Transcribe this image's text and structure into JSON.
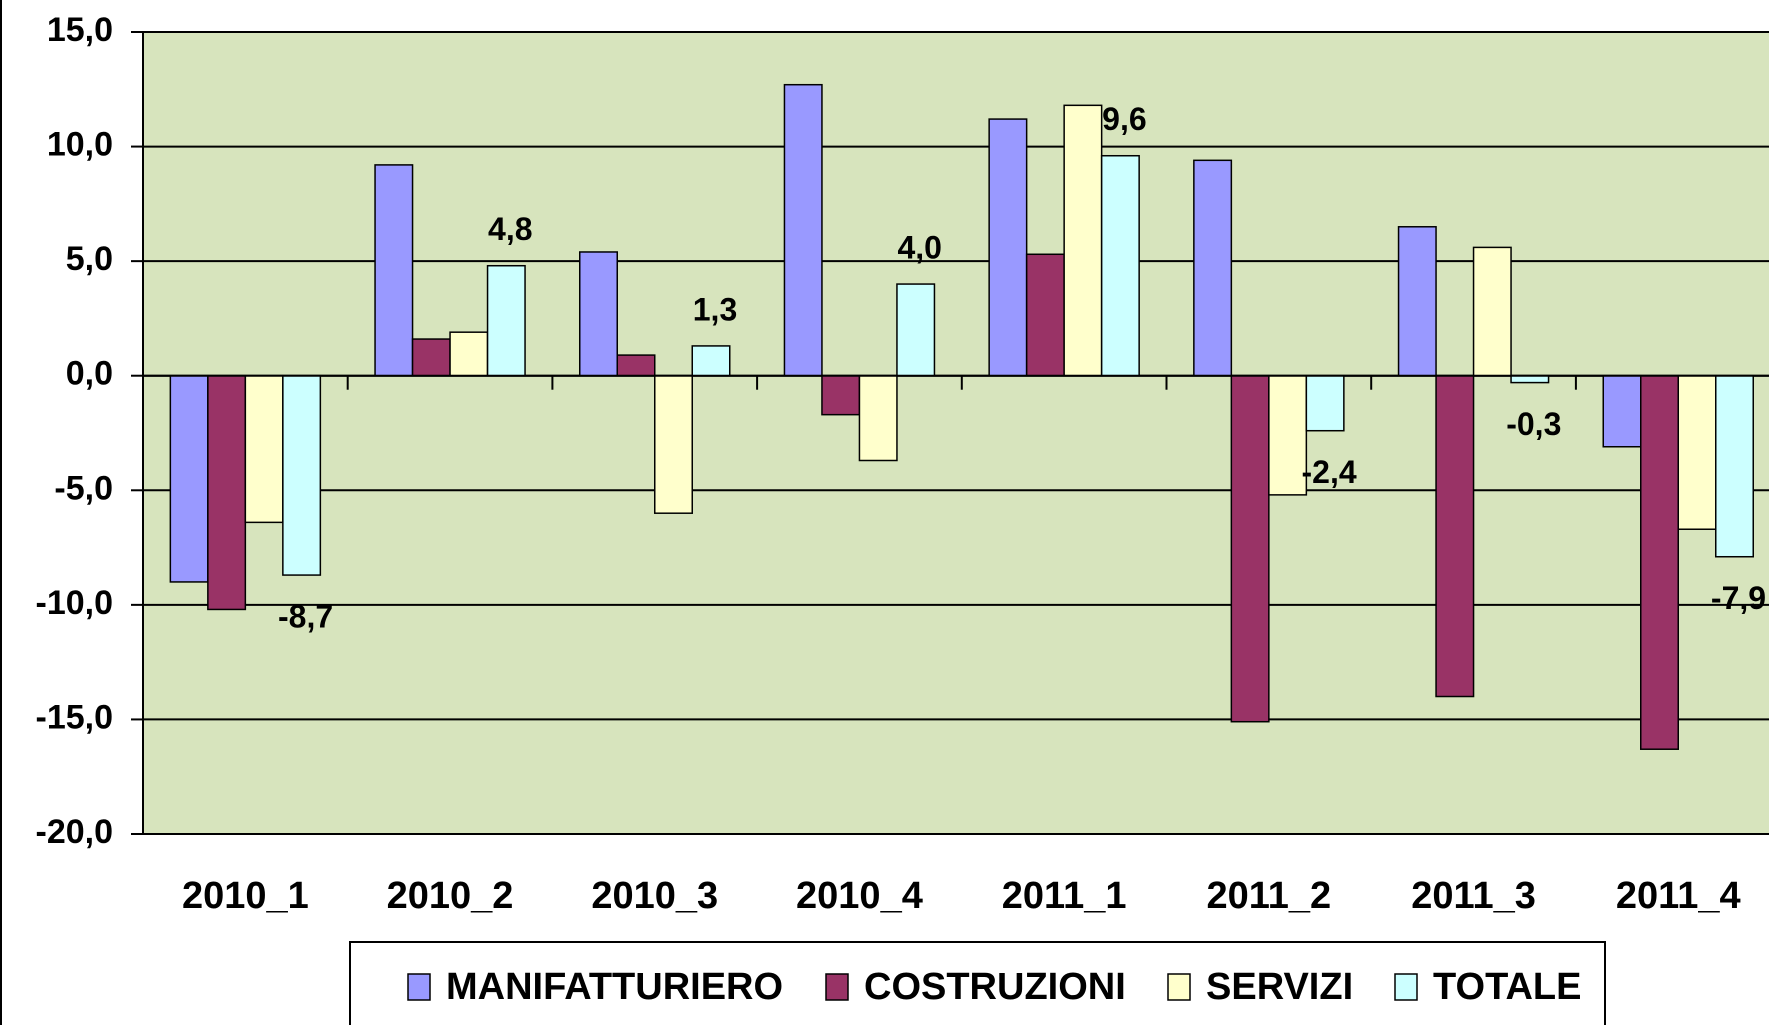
{
  "chart_data": {
    "type": "bar",
    "categories": [
      "2010_1",
      "2010_2",
      "2010_3",
      "2010_4",
      "2011_1",
      "2011_2",
      "2011_3",
      "2011_4"
    ],
    "series": [
      {
        "name": "MANIFATTURIERO",
        "color": "#9999ff",
        "values": [
          -9.0,
          9.2,
          5.4,
          12.7,
          11.2,
          9.4,
          6.5,
          -3.1
        ]
      },
      {
        "name": "COSTRUZIONI",
        "color": "#993366",
        "values": [
          -10.2,
          1.6,
          0.9,
          -1.7,
          5.3,
          -15.1,
          -14.0,
          -16.3
        ]
      },
      {
        "name": "SERVIZI",
        "color": "#ffffcc",
        "values": [
          -6.4,
          1.9,
          -6.0,
          -3.7,
          11.8,
          -5.2,
          5.6,
          -6.7
        ]
      },
      {
        "name": "TOTALE",
        "color": "#ccffff",
        "values": [
          -8.7,
          4.8,
          1.3,
          4.0,
          9.6,
          -2.4,
          -0.3,
          -7.9
        ],
        "value_labels": [
          "-8,7",
          "4,8",
          "1,3",
          "4,0",
          "9,6",
          "-2,4",
          "-0,3",
          "-7,9"
        ]
      }
    ],
    "ylim": [
      -20,
      15
    ],
    "yticks": [
      {
        "value": -20,
        "label": "-20,0"
      },
      {
        "value": -15,
        "label": "-15,0"
      },
      {
        "value": -10,
        "label": "-10,0"
      },
      {
        "value": -5,
        "label": "-5,0"
      },
      {
        "value": 0,
        "label": "0,0"
      },
      {
        "value": 5,
        "label": "5,0"
      },
      {
        "value": 10,
        "label": "10,0"
      },
      {
        "value": 15,
        "label": "15,0"
      }
    ],
    "grid": true,
    "plot_background": "#d7e4bd",
    "legend": "bottom"
  }
}
